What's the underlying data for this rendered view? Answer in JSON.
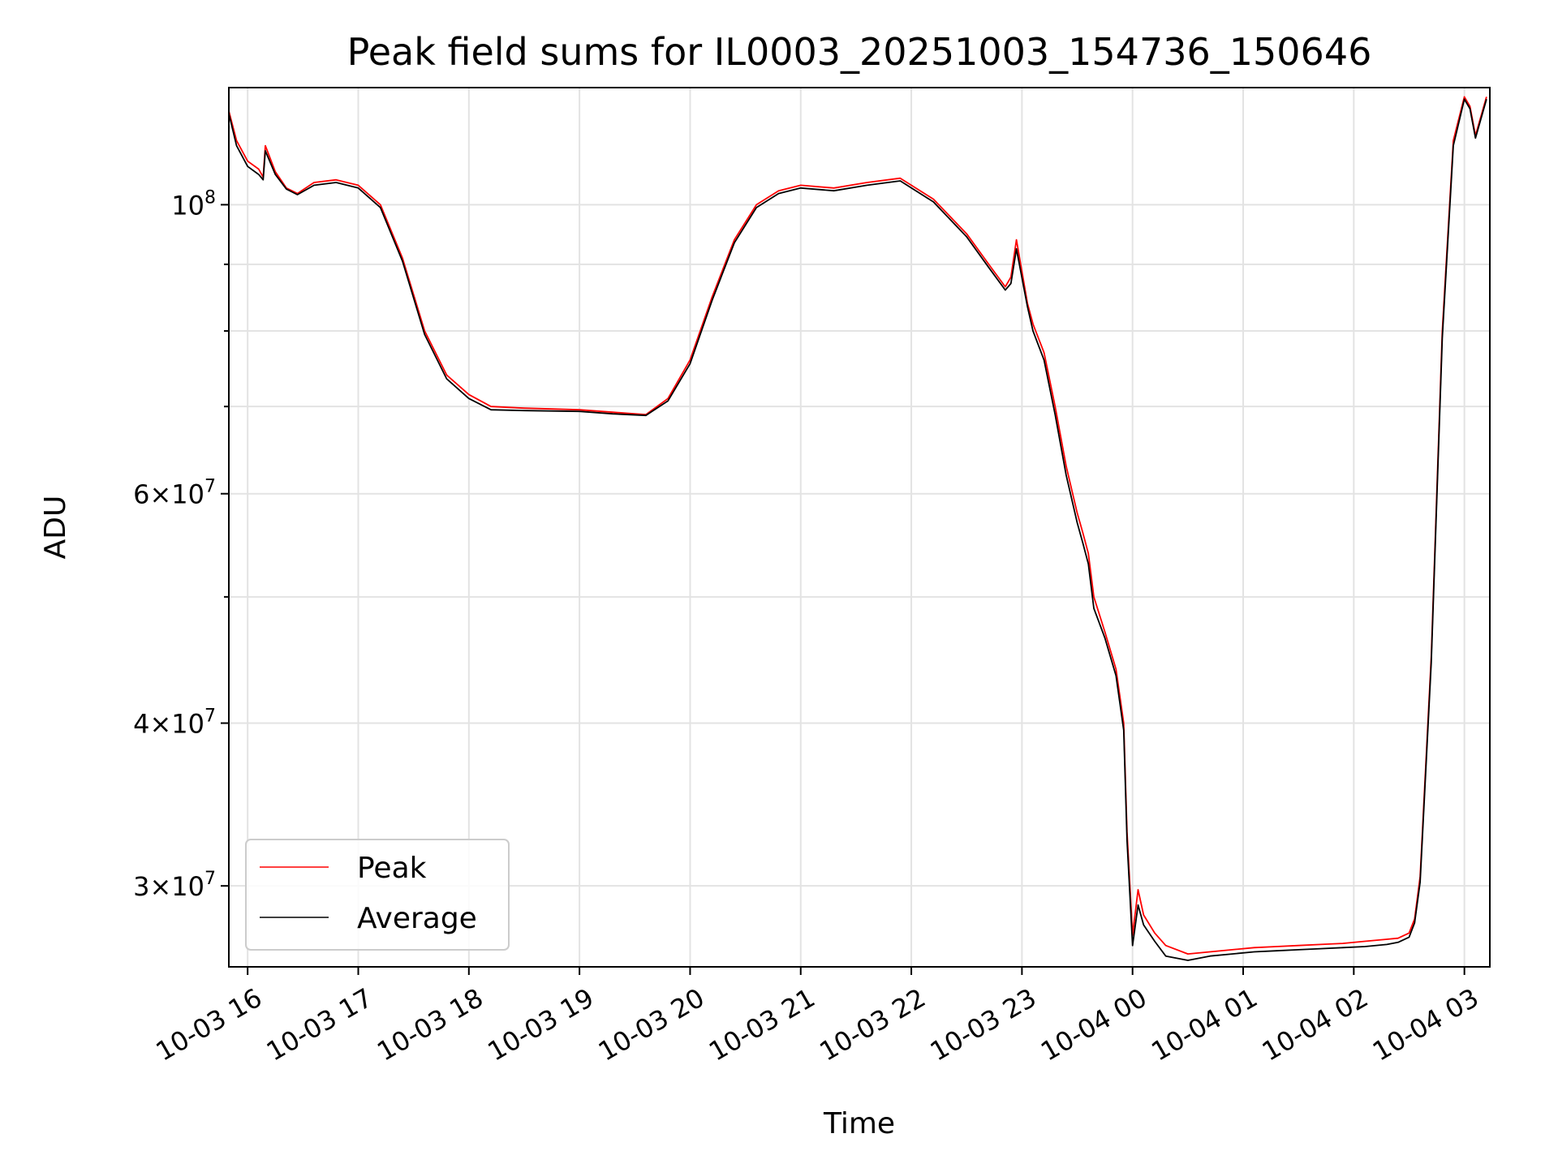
{
  "chart_data": {
    "type": "line",
    "title": "Peak field sums for IL0003_20251003_154736_150646",
    "xlabel": "Time",
    "ylabel": "ADU",
    "yscale": "log",
    "xlim": [
      15.83,
      27.23
    ],
    "ylim": [
      26000000,
      123000000
    ],
    "x_unit": "hours since 10-03 00:00",
    "x_ticks": [
      {
        "value": 16,
        "label": "10-03 16"
      },
      {
        "value": 17,
        "label": "10-03 17"
      },
      {
        "value": 18,
        "label": "10-03 18"
      },
      {
        "value": 19,
        "label": "10-03 19"
      },
      {
        "value": 20,
        "label": "10-03 20"
      },
      {
        "value": 21,
        "label": "10-03 21"
      },
      {
        "value": 22,
        "label": "10-03 22"
      },
      {
        "value": 23,
        "label": "10-03 23"
      },
      {
        "value": 24,
        "label": "10-04 00"
      },
      {
        "value": 25,
        "label": "10-04 01"
      },
      {
        "value": 26,
        "label": "10-04 02"
      },
      {
        "value": 27,
        "label": "10-04 03"
      }
    ],
    "y_ticks": [
      {
        "value": 30000000,
        "base": "3×10",
        "exp": "7"
      },
      {
        "value": 40000000,
        "base": "4×10",
        "exp": "7"
      },
      {
        "value": 60000000,
        "base": "6×10",
        "exp": "7"
      },
      {
        "value": 100000000,
        "base": "10",
        "exp": "8"
      }
    ],
    "y_minor_ticks": [
      50000000,
      70000000,
      80000000,
      90000000
    ],
    "grid": true,
    "legend_position": "lower-left",
    "series": [
      {
        "name": "Peak",
        "color": "#ff0000",
        "x": [
          15.83,
          15.9,
          16.0,
          16.1,
          16.14,
          16.16,
          16.25,
          16.35,
          16.45,
          16.6,
          16.8,
          17.0,
          17.2,
          17.4,
          17.6,
          17.8,
          18.0,
          18.2,
          18.5,
          19.0,
          19.3,
          19.6,
          19.8,
          20.0,
          20.2,
          20.4,
          20.6,
          20.8,
          21.0,
          21.3,
          21.6,
          21.9,
          22.2,
          22.5,
          22.7,
          22.85,
          22.9,
          22.95,
          23.05,
          23.1,
          23.2,
          23.3,
          23.4,
          23.5,
          23.55,
          23.6,
          23.65,
          23.75,
          23.85,
          23.92,
          23.95,
          24.0,
          24.05,
          24.1,
          24.2,
          24.3,
          24.5,
          24.7,
          24.9,
          25.1,
          25.3,
          25.5,
          25.7,
          25.9,
          26.1,
          26.3,
          26.4,
          26.5,
          26.55,
          26.6,
          26.7,
          26.8,
          26.9,
          27.0,
          27.05,
          27.1,
          27.2
        ],
        "y": [
          118000000,
          112000000,
          108000000,
          106500000,
          105000000,
          111000000,
          106000000,
          103000000,
          102000000,
          104000000,
          104500000,
          103500000,
          100000000,
          91000000,
          80000000,
          74000000,
          71500000,
          70000000,
          69800000,
          69600000,
          69300000,
          69000000,
          71000000,
          76000000,
          85000000,
          94000000,
          100000000,
          102500000,
          103500000,
          103000000,
          104000000,
          104800000,
          101000000,
          95000000,
          90000000,
          86500000,
          88000000,
          94000000,
          84000000,
          81000000,
          77000000,
          70000000,
          63000000,
          58000000,
          56000000,
          54000000,
          50000000,
          47000000,
          44000000,
          40000000,
          33000000,
          27500000,
          29800000,
          28500000,
          27600000,
          27000000,
          26600000,
          26700000,
          26800000,
          26900000,
          26950000,
          27000000,
          27050000,
          27100000,
          27200000,
          27300000,
          27350000,
          27600000,
          28300000,
          30500000,
          45000000,
          80000000,
          112000000,
          121000000,
          119000000,
          113000000,
          121000000
        ]
      },
      {
        "name": "Average",
        "color": "#000000",
        "x": [
          15.83,
          15.9,
          16.0,
          16.1,
          16.14,
          16.16,
          16.25,
          16.35,
          16.45,
          16.6,
          16.8,
          17.0,
          17.2,
          17.4,
          17.6,
          17.8,
          18.0,
          18.2,
          18.5,
          19.0,
          19.3,
          19.6,
          19.8,
          20.0,
          20.2,
          20.4,
          20.6,
          20.8,
          21.0,
          21.3,
          21.6,
          21.9,
          22.2,
          22.5,
          22.7,
          22.85,
          22.9,
          22.95,
          23.05,
          23.1,
          23.2,
          23.3,
          23.4,
          23.5,
          23.55,
          23.6,
          23.65,
          23.75,
          23.85,
          23.92,
          23.95,
          24.0,
          24.05,
          24.1,
          24.2,
          24.3,
          24.5,
          24.7,
          24.9,
          25.1,
          25.3,
          25.5,
          25.7,
          25.9,
          26.1,
          26.3,
          26.4,
          26.5,
          26.55,
          26.6,
          26.7,
          26.8,
          26.9,
          27.0,
          27.05,
          27.1,
          27.2
        ],
        "y": [
          117500000,
          111000000,
          107000000,
          105500000,
          104500000,
          110000000,
          105500000,
          102800000,
          101800000,
          103500000,
          104000000,
          103000000,
          99500000,
          90500000,
          79500000,
          73500000,
          71000000,
          69600000,
          69500000,
          69400000,
          69100000,
          68900000,
          70700000,
          75500000,
          84500000,
          93500000,
          99500000,
          102000000,
          103000000,
          102500000,
          103500000,
          104300000,
          100500000,
          94500000,
          89500000,
          86000000,
          87000000,
          92500000,
          83500000,
          80000000,
          76000000,
          69000000,
          62000000,
          57000000,
          55000000,
          53000000,
          49000000,
          46500000,
          43500000,
          39500000,
          32500000,
          27000000,
          29000000,
          28000000,
          27200000,
          26500000,
          26300000,
          26500000,
          26600000,
          26700000,
          26750000,
          26800000,
          26850000,
          26900000,
          26950000,
          27050000,
          27150000,
          27400000,
          28100000,
          30200000,
          44500000,
          79000000,
          111000000,
          120500000,
          118500000,
          112500000,
          120500000
        ]
      }
    ]
  }
}
